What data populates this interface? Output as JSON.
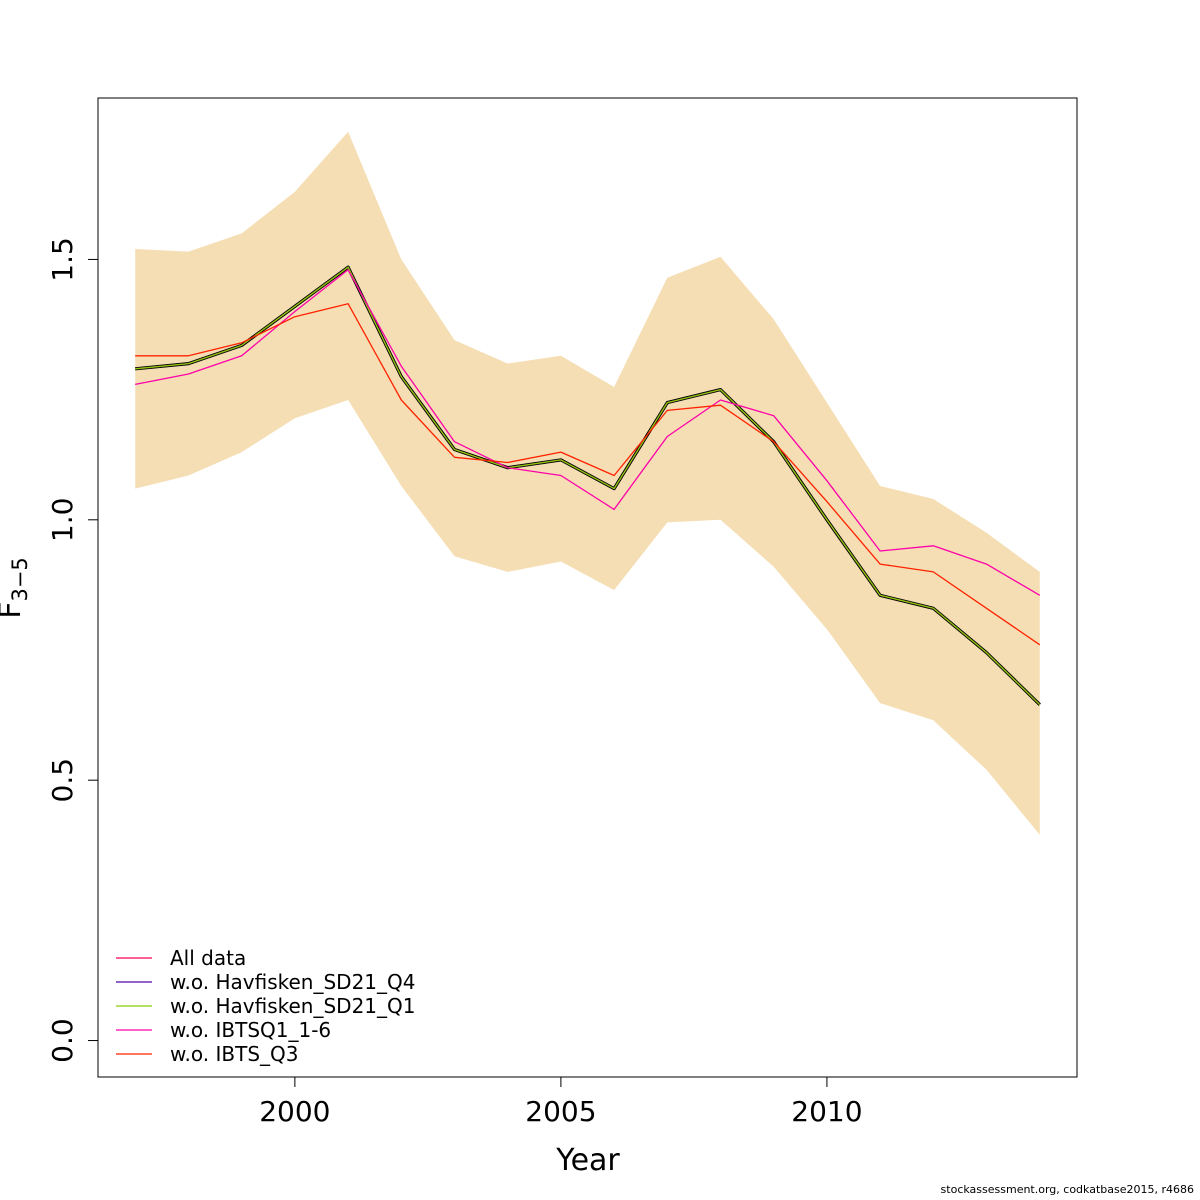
{
  "chart_data": {
    "type": "line",
    "xlabel": "Year",
    "ylabel_main": "F",
    "ylabel_sub": "3−5",
    "xlim": [
      1996.3,
      2014.7
    ],
    "ylim": [
      -0.07,
      1.81
    ],
    "x_ticks": [
      2000,
      2005,
      2010
    ],
    "x_tick_labels": [
      "2000",
      "2005",
      "2010"
    ],
    "y_ticks": [
      0.0,
      0.5,
      1.0,
      1.5
    ],
    "y_tick_labels": [
      "0.0",
      "0.5",
      "1.0",
      "1.5"
    ],
    "grid": false,
    "legend_position": "bottom-left",
    "band_color": "#F5DEB3",
    "x": [
      1997,
      1998,
      1999,
      2000,
      2001,
      2002,
      2003,
      2004,
      2005,
      2006,
      2007,
      2008,
      2009,
      2010,
      2011,
      2012,
      2013,
      2014
    ],
    "band_upper": [
      1.52,
      1.515,
      1.55,
      1.63,
      1.745,
      1.5,
      1.345,
      1.3,
      1.315,
      1.255,
      1.465,
      1.505,
      1.385,
      1.225,
      1.065,
      1.04,
      0.975,
      0.9
    ],
    "band_lower": [
      1.06,
      1.085,
      1.13,
      1.195,
      1.23,
      1.065,
      0.93,
      0.9,
      0.92,
      0.865,
      0.995,
      1.0,
      0.91,
      0.79,
      0.648,
      0.615,
      0.52,
      0.395
    ],
    "base_series": {
      "values": [
        1.29,
        1.3,
        1.335,
        1.41,
        1.485,
        1.275,
        1.135,
        1.1,
        1.115,
        1.06,
        1.225,
        1.25,
        1.15,
        1.0,
        0.855,
        0.83,
        0.745,
        0.645
      ],
      "color": "#000000"
    },
    "series": [
      {
        "name": "All data",
        "color": "#FF0055",
        "values": [
          1.29,
          1.3,
          1.335,
          1.41,
          1.485,
          1.275,
          1.135,
          1.1,
          1.115,
          1.06,
          1.225,
          1.25,
          1.15,
          1.0,
          0.855,
          0.83,
          0.745,
          0.645
        ]
      },
      {
        "name": "w.o. Havfisken_SD21_Q4",
        "color": "#5500AA",
        "values": [
          1.29,
          1.3,
          1.335,
          1.41,
          1.485,
          1.275,
          1.135,
          1.1,
          1.115,
          1.06,
          1.225,
          1.25,
          1.15,
          1.0,
          0.855,
          0.83,
          0.745,
          0.645
        ]
      },
      {
        "name": "w.o. Havfisken_SD21_Q1",
        "color": "#88CC00",
        "values": [
          1.29,
          1.3,
          1.335,
          1.41,
          1.485,
          1.275,
          1.135,
          1.1,
          1.115,
          1.06,
          1.225,
          1.25,
          1.15,
          1.0,
          0.855,
          0.83,
          0.745,
          0.645
        ]
      },
      {
        "name": "w.o. IBTSQ1_1-6",
        "color": "#FF00AA",
        "values": [
          1.26,
          1.28,
          1.315,
          1.4,
          1.48,
          1.295,
          1.15,
          1.1,
          1.085,
          1.02,
          1.16,
          1.23,
          1.2,
          1.075,
          0.94,
          0.95,
          0.915,
          0.855
        ]
      },
      {
        "name": "w.o. IBTS_Q3",
        "color": "#FF2200",
        "values": [
          1.315,
          1.315,
          1.34,
          1.39,
          1.415,
          1.23,
          1.12,
          1.11,
          1.13,
          1.085,
          1.21,
          1.22,
          1.15,
          1.035,
          0.915,
          0.9,
          0.83,
          0.76
        ]
      }
    ]
  },
  "footer": {
    "text": "stockassessment.org, codkatbase2015, r4686"
  }
}
